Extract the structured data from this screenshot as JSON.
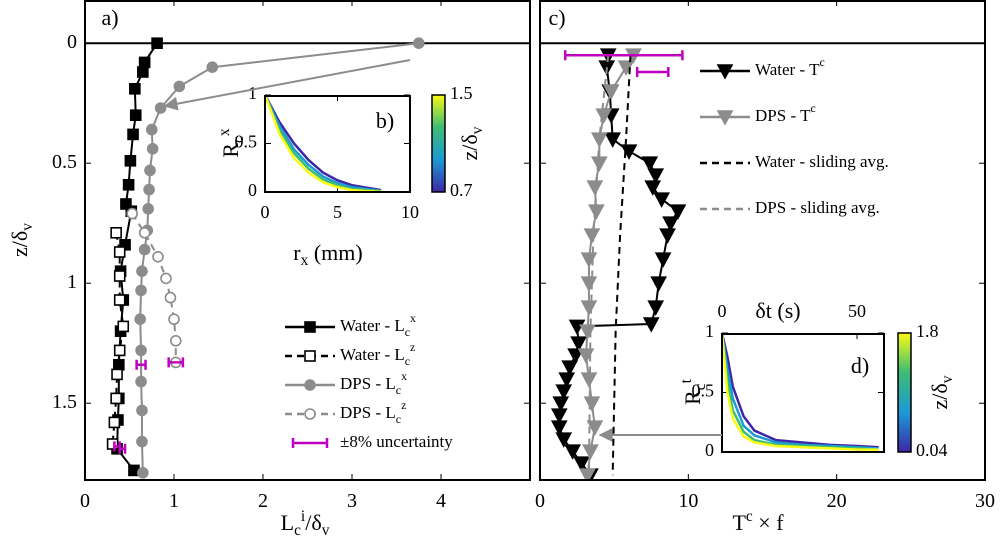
{
  "chart_data": [
    {
      "type": "line",
      "annotation": "a)",
      "xlabel": "L_c^i/δ_v",
      "ylabel": "z/δ_v",
      "xlim": [
        0,
        5
      ],
      "xticks": [
        0,
        1,
        2,
        3,
        4
      ],
      "ylim": [
        -0.18,
        1.82
      ],
      "yticks": [
        0,
        0.5,
        1,
        1.5
      ],
      "y_reversed": true,
      "series": [
        {
          "name": "Water - L_c^x",
          "color": "#000000",
          "marker": "square",
          "filled": true,
          "dash": false,
          "x": [
            0.81,
            0.67,
            0.65,
            0.56,
            0.57,
            0.54,
            0.51,
            0.49,
            0.46,
            0.52,
            0.45,
            0.4,
            0.43,
            0.4,
            0.38,
            0.38,
            0.37,
            0.36,
            0.55
          ],
          "values": [
            0,
            0.08,
            0.12,
            0.19,
            0.3,
            0.38,
            0.49,
            0.59,
            0.67,
            0.7,
            0.84,
            0.95,
            1.07,
            1.2,
            1.34,
            1.48,
            1.57,
            1.69,
            1.78
          ]
        },
        {
          "name": "Water - L_c^z",
          "color": "#000000",
          "marker": "square",
          "filled": false,
          "dash": true,
          "x": [
            0.35,
            0.39,
            0.39,
            0.39,
            0.43,
            0.39,
            0.36,
            0.35,
            0.33,
            0.31
          ],
          "values": [
            0.79,
            0.87,
            0.97,
            1.07,
            1.18,
            1.28,
            1.38,
            1.48,
            1.58,
            1.67
          ]
        },
        {
          "name": "DPS - L_c^x",
          "color": "#8c8c8c",
          "marker": "circle",
          "filled": true,
          "dash": false,
          "x": [
            3.75,
            1.43,
            1.06,
            0.85,
            0.75,
            0.76,
            0.73,
            0.72,
            0.71,
            0.7,
            0.67,
            0.64,
            0.63,
            0.62,
            0.63,
            0.63,
            0.64,
            0.64,
            0.65
          ],
          "values": [
            0,
            0.1,
            0.18,
            0.27,
            0.36,
            0.44,
            0.53,
            0.61,
            0.69,
            0.78,
            0.86,
            0.95,
            1.03,
            1.15,
            1.28,
            1.41,
            1.53,
            1.66,
            1.79
          ]
        },
        {
          "name": "DPS - L_c^z",
          "color": "#8c8c8c",
          "marker": "circle",
          "filled": false,
          "dash": true,
          "x": [
            0.53,
            0.67,
            0.82,
            0.91,
            0.96,
            1.0,
            1.02,
            1.02
          ],
          "values": [
            0.71,
            0.79,
            0.89,
            0.98,
            1.06,
            1.15,
            1.24,
            1.33
          ]
        }
      ],
      "error_bars": {
        "name": "±8% uncertainty",
        "color": "#c000c0",
        "x": [
          0.63,
          1.02,
          0.36,
          0.42
        ],
        "values": [
          1.34,
          1.33,
          1.68,
          1.69
        ],
        "xerr": [
          0.05,
          0.08,
          0.03,
          0.03
        ]
      }
    },
    {
      "type": "line",
      "annotation": "b)",
      "xlabel": "r_x (mm)",
      "ylabel": "R_c^x",
      "xlim": [
        0,
        10
      ],
      "xticks": [
        0,
        5,
        10
      ],
      "ylim": [
        0,
        1
      ],
      "yticks": [
        0,
        0.5,
        1
      ],
      "y_reversed": false,
      "series": [
        {
          "color": "#3e26a8",
          "x": [
            0,
            1,
            2,
            3,
            4,
            5,
            6,
            8
          ],
          "values": [
            1,
            0.72,
            0.5,
            0.33,
            0.2,
            0.12,
            0.07,
            0.02
          ]
        },
        {
          "color": "#1b9ad6",
          "x": [
            0,
            1,
            2,
            3,
            4,
            5,
            6,
            8
          ],
          "values": [
            1,
            0.68,
            0.44,
            0.28,
            0.16,
            0.09,
            0.05,
            0.01
          ]
        },
        {
          "color": "#3dbc74",
          "x": [
            0,
            1,
            2,
            3,
            4,
            5,
            6,
            8
          ],
          "values": [
            1,
            0.64,
            0.4,
            0.24,
            0.13,
            0.07,
            0.03,
            0.01
          ]
        },
        {
          "color": "#f9fb15",
          "x": [
            0,
            1,
            2,
            3,
            4,
            5,
            6,
            8
          ],
          "values": [
            1,
            0.6,
            0.35,
            0.2,
            0.1,
            0.05,
            0.02,
            0
          ]
        }
      ],
      "colorbar": {
        "label": "z/δ_v",
        "clim": [
          0.7,
          1.5
        ],
        "ticks": [
          0.7,
          1.5
        ],
        "colormap": [
          "#3e26a8",
          "#1b9ad6",
          "#3dbc74",
          "#f9fb15"
        ]
      }
    },
    {
      "type": "line",
      "annotation": "c)",
      "xlabel": "T^c × f",
      "xlim": [
        0,
        30
      ],
      "xticks": [
        0,
        10,
        20,
        30
      ],
      "ylim": [
        -0.18,
        1.82
      ],
      "yticks": [
        0,
        0.5,
        1,
        1.5
      ],
      "y_reversed": true,
      "series": [
        {
          "name": "Water - T^c",
          "color": "#000000",
          "marker": "triangle",
          "filled": true,
          "dash": false,
          "x": [
            4.6,
            4.5,
            4.7,
            4.8,
            4.9,
            6.0,
            7.4,
            7.8,
            7.6,
            8.2,
            9.3,
            8.8,
            8.6,
            8.3,
            8.0,
            7.8,
            7.5,
            2.5,
            2.6,
            2.4,
            2.0,
            1.8,
            1.6,
            1.4,
            1.3,
            1.3,
            1.6,
            2.2,
            2.8,
            3.4
          ],
          "values": [
            0.05,
            0.1,
            0.2,
            0.3,
            0.4,
            0.45,
            0.5,
            0.55,
            0.6,
            0.65,
            0.7,
            0.75,
            0.8,
            0.9,
            1.0,
            1.1,
            1.17,
            1.18,
            1.25,
            1.3,
            1.35,
            1.4,
            1.45,
            1.5,
            1.55,
            1.6,
            1.65,
            1.7,
            1.75,
            1.8
          ]
        },
        {
          "name": "DPS - T^c",
          "color": "#8c8c8c",
          "marker": "triangle",
          "filled": true,
          "dash": false,
          "x": [
            6.3,
            5.8,
            4.8,
            4.3,
            4.0,
            4.0,
            3.7,
            3.8,
            3.5,
            3.3,
            3.3,
            3.3,
            3.2,
            3.1,
            3.3,
            3.5,
            3.7,
            3.4,
            3.2
          ],
          "values": [
            0.05,
            0.1,
            0.2,
            0.3,
            0.4,
            0.5,
            0.6,
            0.7,
            0.8,
            0.9,
            1.0,
            1.1,
            1.2,
            1.3,
            1.4,
            1.5,
            1.6,
            1.7,
            1.8
          ]
        },
        {
          "name": "Water - sliding avg.",
          "color": "#000000",
          "marker": "none",
          "dash": true,
          "x": [
            6.1,
            5.8,
            5.4,
            5.1,
            4.9
          ],
          "values": [
            0.05,
            0.4,
            0.8,
            1.2,
            1.8
          ]
        },
        {
          "name": "DPS - sliding avg.",
          "color": "#8c8c8c",
          "marker": "none",
          "dash": true,
          "x": [
            4.6,
            4.0,
            3.6,
            3.4,
            3.3
          ],
          "values": [
            0.05,
            0.4,
            0.8,
            1.2,
            1.8
          ]
        }
      ],
      "error_bars": {
        "color": "#c000c0",
        "x": [
          5.65,
          7.6
        ],
        "values": [
          0.05,
          0.12
        ],
        "xerr": [
          3.95,
          1.05
        ]
      }
    },
    {
      "type": "line",
      "annotation": "d)",
      "xlabel": "δt (s)",
      "ylabel": "R_c^t",
      "xlim": [
        0,
        60
      ],
      "xticks": [
        0,
        50
      ],
      "ylim": [
        0,
        1
      ],
      "yticks": [
        0,
        0.5,
        1
      ],
      "y_reversed": false,
      "series": [
        {
          "color": "#3e26a8",
          "x": [
            0,
            2,
            4,
            8,
            12,
            20,
            30,
            40,
            50,
            58
          ],
          "values": [
            1,
            0.8,
            0.55,
            0.3,
            0.18,
            0.1,
            0.08,
            0.06,
            0.05,
            0.04
          ]
        },
        {
          "color": "#1b9ad6",
          "x": [
            0,
            2,
            4,
            8,
            12,
            20,
            30,
            40,
            50,
            58
          ],
          "values": [
            1,
            0.7,
            0.45,
            0.22,
            0.14,
            0.08,
            0.06,
            0.05,
            0.04,
            0.03
          ]
        },
        {
          "color": "#3dbc74",
          "x": [
            0,
            2,
            4,
            8,
            12,
            20,
            30,
            40,
            50,
            58
          ],
          "values": [
            1,
            0.6,
            0.35,
            0.17,
            0.1,
            0.06,
            0.05,
            0.04,
            0.03,
            0.02
          ]
        },
        {
          "color": "#f9fb15",
          "x": [
            0,
            2,
            4,
            8,
            12,
            20,
            30,
            40,
            50,
            58
          ],
          "values": [
            1,
            0.5,
            0.28,
            0.13,
            0.08,
            0.05,
            0.04,
            0.03,
            0.02,
            0.02
          ]
        }
      ],
      "colorbar": {
        "label": "z/δ_v",
        "clim": [
          0.04,
          1.8
        ],
        "ticks": [
          0.04,
          1.8
        ],
        "colormap": [
          "#3e26a8",
          "#1b9ad6",
          "#3dbc74",
          "#f9fb15"
        ]
      }
    }
  ]
}
